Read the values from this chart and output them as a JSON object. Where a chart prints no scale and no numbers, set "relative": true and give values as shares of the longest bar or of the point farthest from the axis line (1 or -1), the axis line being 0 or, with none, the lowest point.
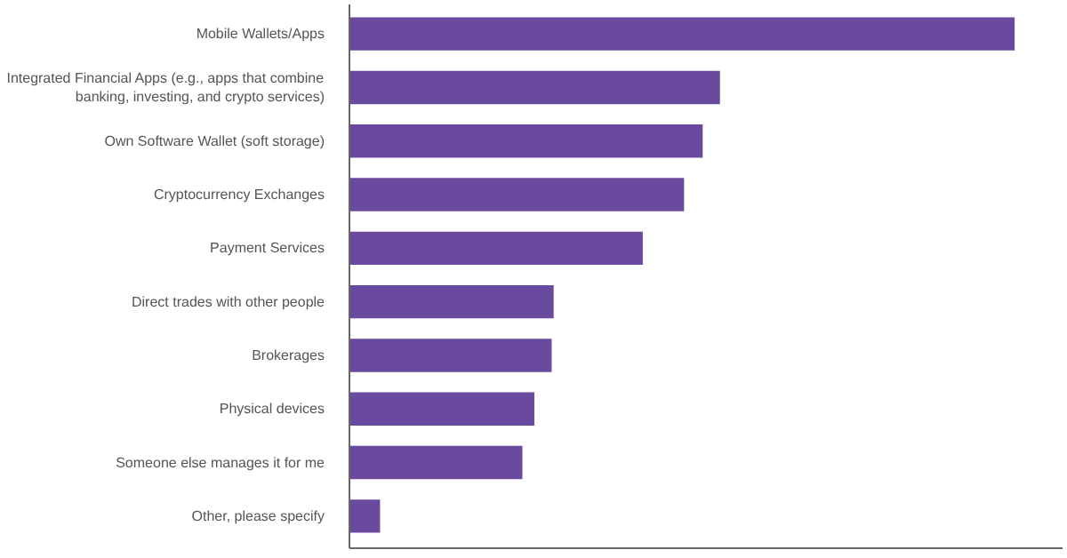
{
  "chart_data": {
    "type": "bar",
    "orientation": "horizontal",
    "relative": true,
    "categories": [
      "Mobile Wallets/Apps",
      "Integrated Financial Apps (e.g., apps that combine banking, investing, and crypto services)",
      "Own Software Wallet (soft storage)",
      "Cryptocurrency Exchanges",
      "Payment Services",
      "Direct trades with other people",
      "Brokerages",
      "Physical devices",
      "Someone else manages it for me",
      "Other, please specify"
    ],
    "values": [
      1,
      0.557,
      0.531,
      0.503,
      0.441,
      0.307,
      0.304,
      0.278,
      0.26,
      0.046
    ],
    "color": "#6a4a9e",
    "grid": false
  }
}
